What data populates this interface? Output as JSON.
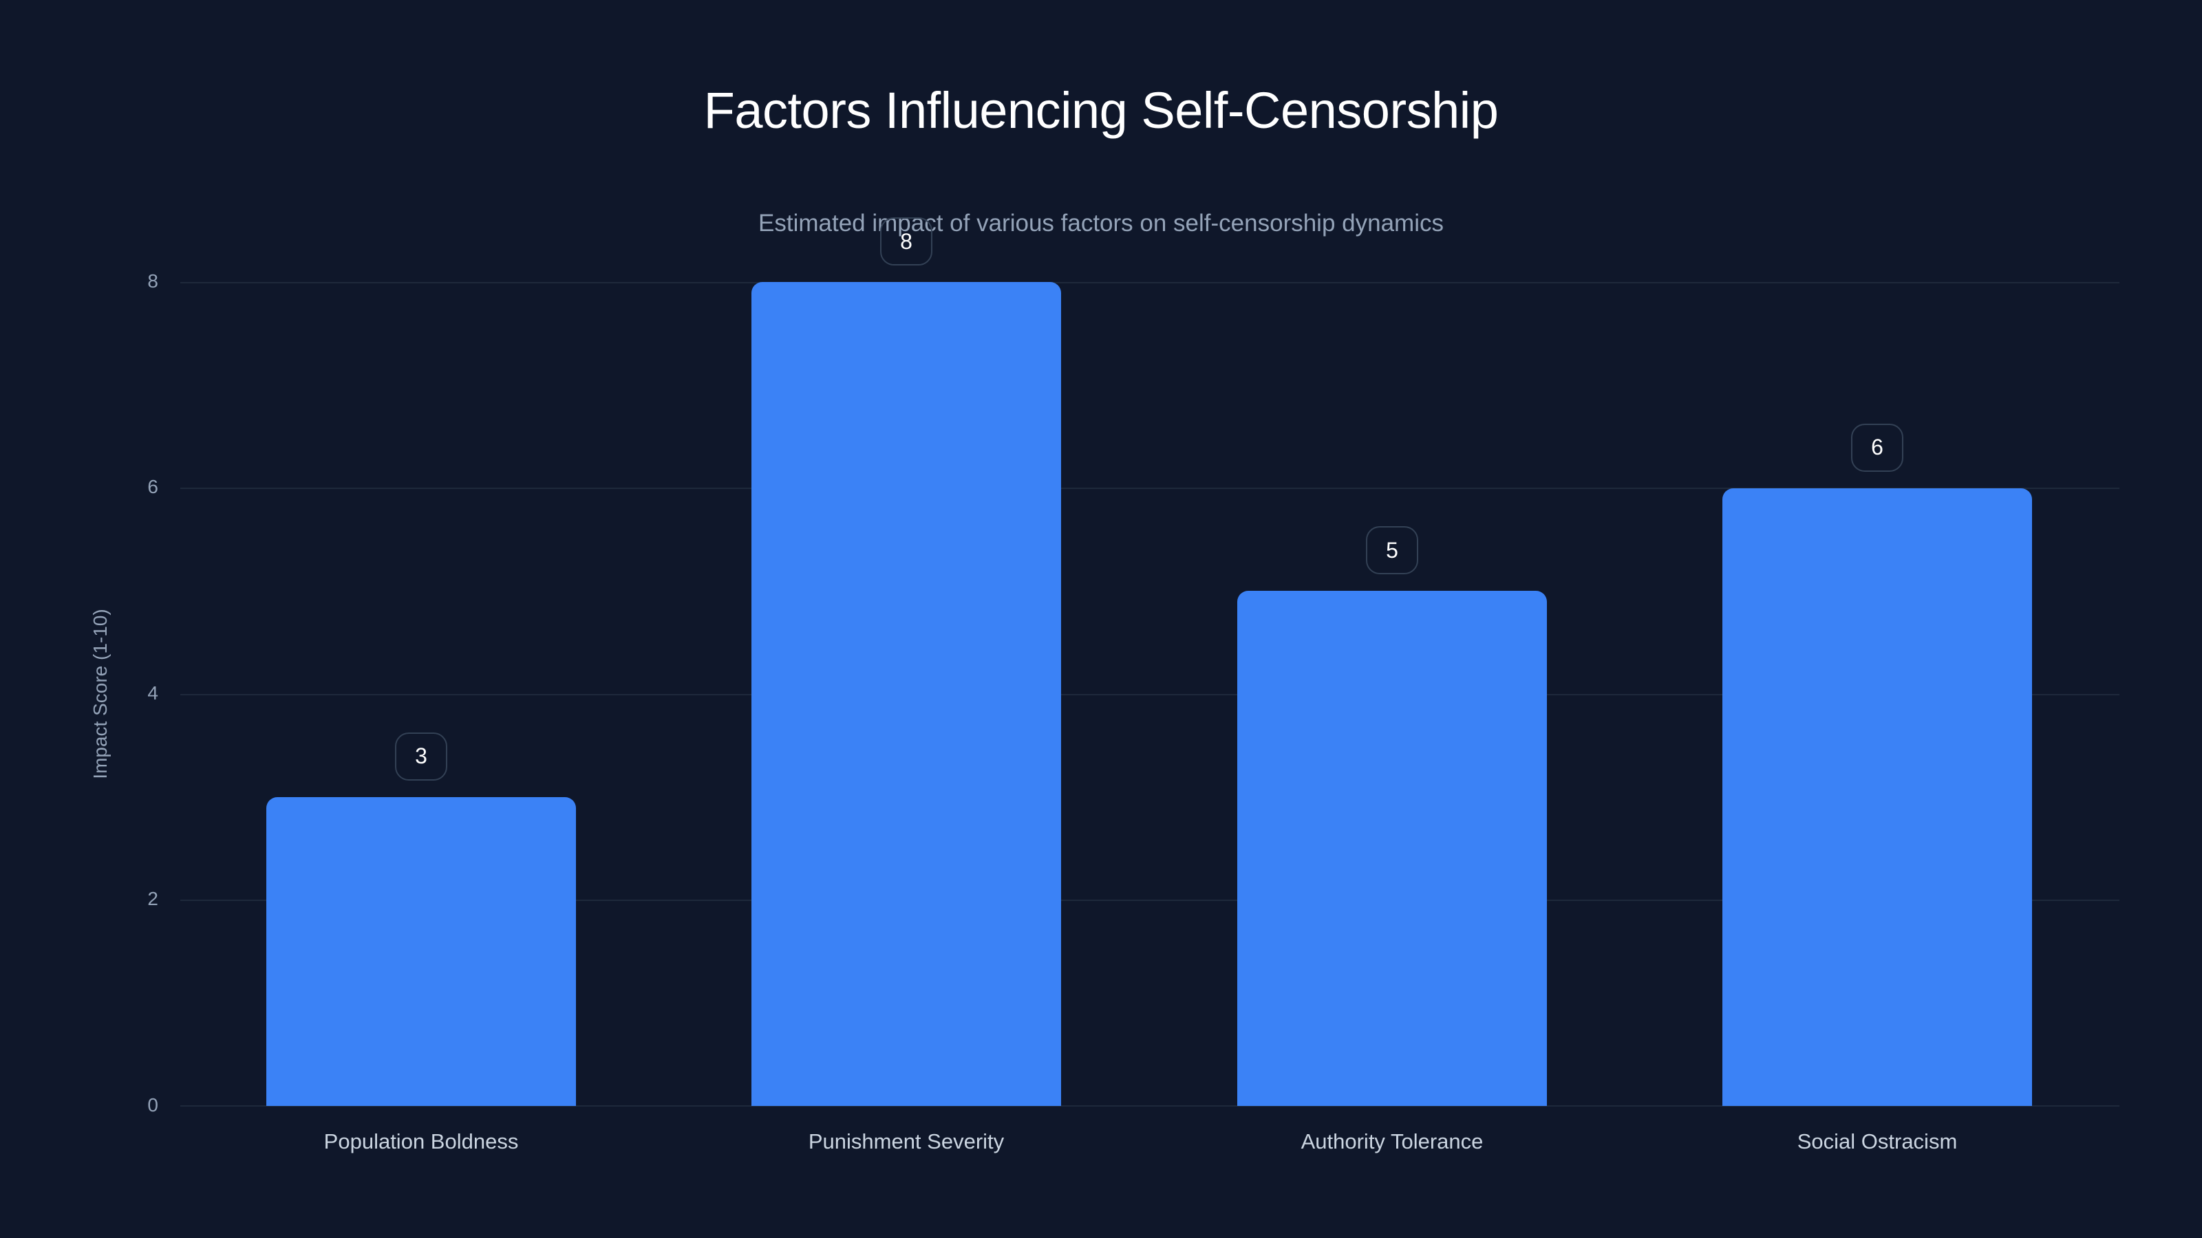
{
  "chart_data": {
    "type": "bar",
    "title": "Factors Influencing Self-Censorship",
    "subtitle": "Estimated impact of various factors on self-censorship dynamics",
    "xlabel": "",
    "ylabel": "Impact Score (1-10)",
    "categories": [
      "Population Boldness",
      "Punishment Severity",
      "Authority Tolerance",
      "Social Ostracism"
    ],
    "values": [
      3,
      8,
      5,
      6
    ],
    "value_labels": [
      "3",
      "8",
      "5",
      "6"
    ],
    "ylim": [
      0,
      8
    ],
    "yticks": [
      "0",
      "2",
      "4",
      "6",
      "8"
    ],
    "grid": true,
    "legend": "none",
    "colors": {
      "bar": "#3b82f6",
      "background": "#0f172a",
      "grid": "#1e293b",
      "label_border": "#334155"
    }
  }
}
